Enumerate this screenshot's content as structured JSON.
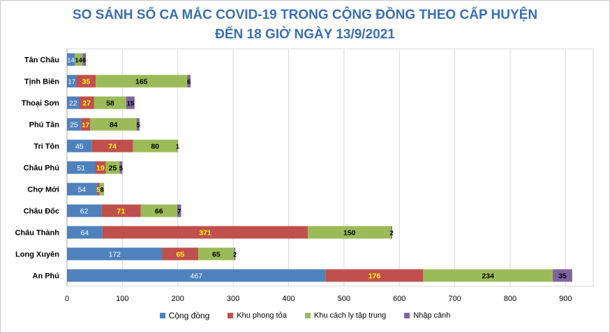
{
  "chart_data": {
    "type": "bar",
    "orientation": "horizontal",
    "stacked": true,
    "title": "SO SÁNH SỐ CA MẮC COVID-19 TRONG CỘNG ĐỒNG THEO CẤP HUYỆN",
    "subtitle": "ĐẾN 18 GIỜ NGÀY 13/9/2021",
    "categories": [
      "Tân Châu",
      "Tịnh Biên",
      "Thoại Sơn",
      "Phú Tân",
      "Tri Tôn",
      "Châu Phú",
      "Chợ Mới",
      "Châu Đốc",
      "Châu Thành",
      "Long Xuyên",
      "An Phú"
    ],
    "series": [
      {
        "name": "Cộng đồng",
        "color": "#4f81bd",
        "label_color": "#ffffff",
        "values": [
          14,
          17,
          22,
          25,
          45,
          51,
          54,
          62,
          64,
          172,
          467
        ]
      },
      {
        "name": "Khu phong tỏa",
        "color": "#c0504d",
        "label_color": "#ffff00",
        "values": [
          0,
          35,
          27,
          17,
          74,
          19,
          5,
          71,
          371,
          65,
          176
        ]
      },
      {
        "name": "Khu cách ly tập trung",
        "color": "#9bbb59",
        "label_color": "#000000",
        "values": [
          14,
          165,
          58,
          84,
          80,
          25,
          8,
          66,
          150,
          65,
          234
        ]
      },
      {
        "name": "Nhập cảnh",
        "color": "#8064a2",
        "label_color": "#000000",
        "values": [
          6,
          6,
          15,
          5,
          1,
          5,
          0,
          7,
          2,
          2,
          35
        ]
      }
    ],
    "data_labels": [
      [
        "14",
        "",
        "14",
        "6"
      ],
      [
        "17",
        "35",
        "165",
        "6"
      ],
      [
        "22",
        "27",
        "58",
        "15"
      ],
      [
        "25",
        "17",
        "84",
        "5"
      ],
      [
        "45",
        "74",
        "80",
        "1"
      ],
      [
        "51",
        "19",
        "25",
        "5"
      ],
      [
        "54",
        "5",
        "8",
        ""
      ],
      [
        "62",
        "71",
        "66",
        "7"
      ],
      [
        "64",
        "371",
        "150",
        "2"
      ],
      [
        "172",
        "65",
        "65",
        "2"
      ],
      [
        "467",
        "176",
        "234",
        "35"
      ]
    ],
    "x_ticks": [
      "0",
      "100",
      "200",
      "300",
      "400",
      "500",
      "600",
      "700",
      "800",
      "900"
    ],
    "xlim": [
      0,
      950
    ],
    "grid": "vertical",
    "legend_position": "bottom"
  }
}
